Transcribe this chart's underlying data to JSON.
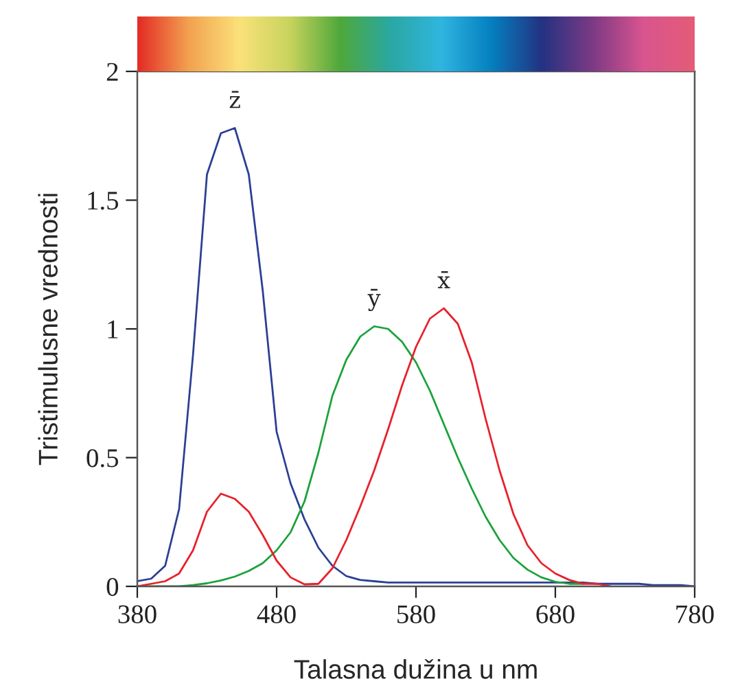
{
  "chart_data": {
    "type": "line",
    "xlabel": "Talasna dužina u nm",
    "ylabel": "Tristimulusne vrednosti",
    "x": [
      380,
      390,
      400,
      410,
      420,
      430,
      440,
      450,
      460,
      470,
      480,
      490,
      500,
      510,
      520,
      530,
      540,
      550,
      560,
      570,
      580,
      590,
      600,
      610,
      620,
      630,
      640,
      650,
      660,
      670,
      680,
      690,
      700,
      710,
      720,
      730,
      740,
      750,
      760,
      770,
      780
    ],
    "series": [
      {
        "name": "z̄",
        "color": "#2b3f95",
        "values": [
          0.02,
          0.03,
          0.08,
          0.3,
          0.9,
          1.6,
          1.76,
          1.78,
          1.6,
          1.15,
          0.6,
          0.4,
          0.26,
          0.15,
          0.08,
          0.04,
          0.025,
          0.02,
          0.015,
          0.015,
          0.015,
          0.015,
          0.015,
          0.015,
          0.015,
          0.015,
          0.015,
          0.015,
          0.015,
          0.015,
          0.015,
          0.015,
          0.015,
          0.01,
          0.01,
          0.01,
          0.01,
          0.005,
          0.005,
          0.005,
          0.0
        ]
      },
      {
        "name": "ȳ",
        "color": "#1aa23a",
        "values": [
          0.0,
          0.0,
          0.0,
          0.0,
          0.005,
          0.012,
          0.023,
          0.038,
          0.06,
          0.09,
          0.14,
          0.21,
          0.33,
          0.52,
          0.74,
          0.88,
          0.97,
          1.01,
          1.0,
          0.95,
          0.87,
          0.76,
          0.63,
          0.5,
          0.38,
          0.27,
          0.18,
          0.11,
          0.065,
          0.035,
          0.018,
          0.01,
          0.01,
          null,
          null,
          null,
          null,
          null,
          null,
          null,
          null
        ]
      },
      {
        "name": "x̄",
        "color": "#e8202a",
        "values": [
          0.0,
          0.01,
          0.02,
          0.05,
          0.14,
          0.29,
          0.36,
          0.34,
          0.29,
          0.2,
          0.1,
          0.035,
          0.008,
          0.01,
          0.07,
          0.18,
          0.31,
          0.45,
          0.61,
          0.78,
          0.93,
          1.04,
          1.08,
          1.02,
          0.87,
          0.65,
          0.45,
          0.28,
          0.16,
          0.09,
          0.05,
          0.025,
          0.01,
          0.01,
          0.0,
          null,
          null,
          null,
          null,
          null,
          null
        ]
      }
    ],
    "xlim": [
      380,
      780
    ],
    "xticks": [
      380,
      480,
      580,
      680,
      780
    ],
    "ylim": [
      0,
      2
    ],
    "yticks": [
      0,
      0.5,
      1,
      1.5,
      2
    ],
    "grid": false,
    "legend": false,
    "marker": "none",
    "line_style": "solid"
  }
}
